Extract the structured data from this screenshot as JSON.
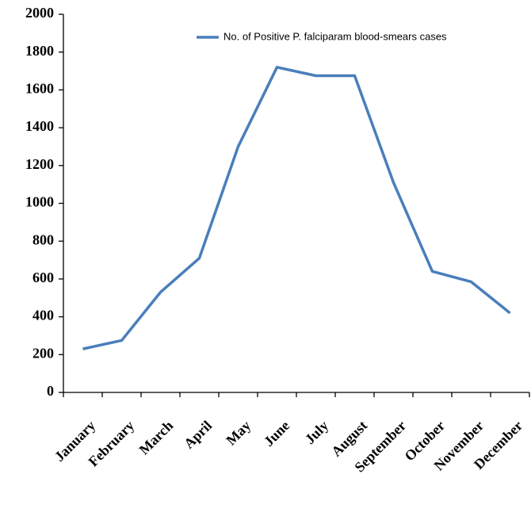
{
  "chart_data": {
    "type": "line",
    "categories": [
      "January",
      "February",
      "March",
      "April",
      "May",
      "June",
      "July",
      "August",
      "September",
      "October",
      "November",
      "December"
    ],
    "series": [
      {
        "name": "No. of Positive P. falciparam blood-smears cases",
        "color": "#4a7ebb",
        "values": [
          230,
          275,
          530,
          710,
          1300,
          1720,
          1675,
          1675,
          1110,
          640,
          585,
          420
        ]
      }
    ],
    "ylim": [
      0,
      2000
    ],
    "yticks": [
      0,
      200,
      400,
      600,
      800,
      1000,
      1200,
      1400,
      1600,
      1800,
      2000
    ],
    "grid": false,
    "legend": "top-right"
  }
}
